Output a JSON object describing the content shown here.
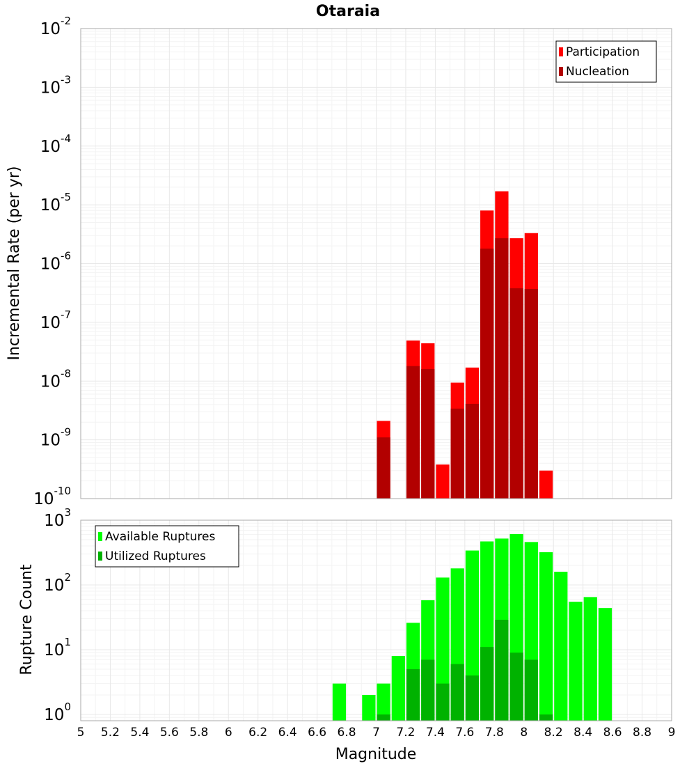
{
  "colors": {
    "participation": "#ff0000",
    "nucleation": "#b20000",
    "available": "#00ff00",
    "utilized": "#00b200"
  },
  "chart_data": [
    {
      "id": "top",
      "type": "bar",
      "title": "Otaraia",
      "xlabel": "",
      "ylabel": "Incremental Rate (per yr)",
      "yscale": "log",
      "ylim": [
        1e-10,
        0.01
      ],
      "xlim": [
        5,
        9
      ],
      "bin_width": 0.1,
      "legend_position": "top-right",
      "grid": true,
      "series": [
        {
          "name": "Participation",
          "color_key": "participation",
          "x": [
            7.05,
            7.25,
            7.35,
            7.45,
            7.55,
            7.65,
            7.75,
            7.85,
            7.95,
            8.05,
            8.15
          ],
          "values": [
            2.1e-09,
            4.9e-08,
            4.4e-08,
            3.8e-10,
            9.4e-09,
            1.7e-08,
            8e-06,
            1.7e-05,
            2.7e-06,
            3.3e-06,
            3e-10
          ]
        },
        {
          "name": "Nucleation",
          "color_key": "nucleation",
          "x": [
            7.05,
            7.25,
            7.35,
            7.45,
            7.55,
            7.65,
            7.75,
            7.85,
            7.95,
            8.05,
            8.15
          ],
          "values": [
            1.1e-09,
            1.8e-08,
            1.6e-08,
            null,
            3.4e-09,
            4.1e-09,
            1.8e-06,
            2.7e-06,
            3.8e-07,
            3.7e-07,
            null
          ]
        }
      ]
    },
    {
      "id": "bottom",
      "type": "bar",
      "title": "",
      "xlabel": "Magnitude",
      "ylabel": "Rupture Count",
      "yscale": "log",
      "ylim": [
        0.8,
        1000
      ],
      "xlim": [
        5,
        9
      ],
      "bin_width": 0.1,
      "legend_position": "top-left",
      "grid": true,
      "x_ticks": [
        "5",
        "5.2",
        "5.4",
        "5.6",
        "5.8",
        "6",
        "6.2",
        "6.4",
        "6.6",
        "6.8",
        "7",
        "7.2",
        "7.4",
        "7.6",
        "7.8",
        "8",
        "8.2",
        "8.4",
        "8.6",
        "8.8",
        "9"
      ],
      "series": [
        {
          "name": "Available Ruptures",
          "color_key": "available",
          "x": [
            6.75,
            6.95,
            7.05,
            7.15,
            7.25,
            7.35,
            7.45,
            7.55,
            7.65,
            7.75,
            7.85,
            7.95,
            8.05,
            8.15,
            8.25,
            8.35,
            8.45,
            8.55
          ],
          "values": [
            3,
            2,
            3,
            8,
            26,
            58,
            130,
            180,
            340,
            470,
            520,
            610,
            460,
            320,
            160,
            55,
            65,
            44
          ]
        },
        {
          "name": "Utilized Ruptures",
          "color_key": "utilized",
          "x": [
            7.05,
            7.25,
            7.35,
            7.45,
            7.55,
            7.65,
            7.75,
            7.85,
            7.95,
            8.05,
            8.15
          ],
          "values": [
            1,
            5,
            7,
            3,
            6,
            4,
            11,
            29,
            9,
            7,
            1
          ]
        }
      ]
    }
  ]
}
